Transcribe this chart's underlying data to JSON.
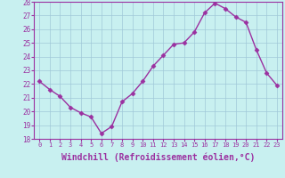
{
  "x": [
    0,
    1,
    2,
    3,
    4,
    5,
    6,
    7,
    8,
    9,
    10,
    11,
    12,
    13,
    14,
    15,
    16,
    17,
    18,
    19,
    20,
    21,
    22,
    23
  ],
  "y": [
    22.2,
    21.6,
    21.1,
    20.3,
    19.9,
    19.6,
    18.4,
    18.9,
    20.7,
    21.3,
    22.2,
    23.3,
    24.1,
    24.9,
    25.0,
    25.8,
    27.2,
    27.9,
    27.5,
    26.9,
    26.5,
    24.5,
    22.8,
    21.9
  ],
  "line_color": "#9b30a0",
  "marker": "D",
  "marker_size": 2.5,
  "xlabel": "Windchill (Refroidissement éolien,°C)",
  "xlabel_fontsize": 7,
  "ylim": [
    18,
    28
  ],
  "yticks": [
    18,
    19,
    20,
    21,
    22,
    23,
    24,
    25,
    26,
    27,
    28
  ],
  "xticks": [
    0,
    1,
    2,
    3,
    4,
    5,
    6,
    7,
    8,
    9,
    10,
    11,
    12,
    13,
    14,
    15,
    16,
    17,
    18,
    19,
    20,
    21,
    22,
    23
  ],
  "background_color": "#c8f0f0",
  "grid_color": "#a0c8d8",
  "tick_label_color": "#9b30a0",
  "axis_label_color": "#9b30a0",
  "linewidth": 1.0,
  "spine_color": "#9b30a0"
}
